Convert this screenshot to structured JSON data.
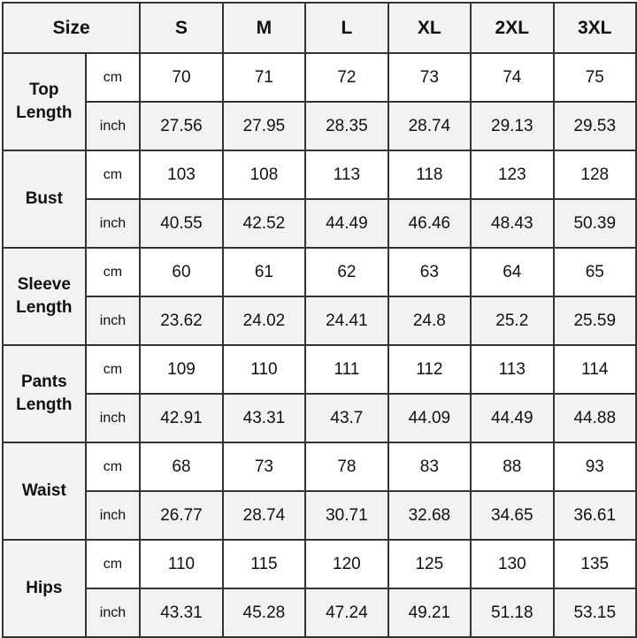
{
  "header": {
    "size_label": "Size",
    "sizes": [
      "S",
      "M",
      "L",
      "XL",
      "2XL",
      "3XL"
    ]
  },
  "rows": [
    {
      "label_line1": "Top",
      "label_line2": "Length",
      "cm_unit": "cm",
      "inch_unit": "inch",
      "cm": [
        "70",
        "71",
        "72",
        "73",
        "74",
        "75"
      ],
      "inch": [
        "27.56",
        "27.95",
        "28.35",
        "28.74",
        "29.13",
        "29.53"
      ]
    },
    {
      "label_line1": "Bust",
      "label_line2": "",
      "cm_unit": "cm",
      "inch_unit": "inch",
      "cm": [
        "103",
        "108",
        "113",
        "118",
        "123",
        "128"
      ],
      "inch": [
        "40.55",
        "42.52",
        "44.49",
        "46.46",
        "48.43",
        "50.39"
      ]
    },
    {
      "label_line1": "Sleeve",
      "label_line2": "Length",
      "cm_unit": "cm",
      "inch_unit": "inch",
      "cm": [
        "60",
        "61",
        "62",
        "63",
        "64",
        "65"
      ],
      "inch": [
        "23.62",
        "24.02",
        "24.41",
        "24.8",
        "25.2",
        "25.59"
      ]
    },
    {
      "label_line1": "Pants",
      "label_line2": "Length",
      "cm_unit": "cm",
      "inch_unit": "inch",
      "cm": [
        "109",
        "110",
        "111",
        "112",
        "113",
        "114"
      ],
      "inch": [
        "42.91",
        "43.31",
        "43.7",
        "44.09",
        "44.49",
        "44.88"
      ]
    },
    {
      "label_line1": "Waist",
      "label_line2": "",
      "cm_unit": "cm",
      "inch_unit": "inch",
      "cm": [
        "68",
        "73",
        "78",
        "83",
        "88",
        "93"
      ],
      "inch": [
        "26.77",
        "28.74",
        "30.71",
        "32.68",
        "34.65",
        "36.61"
      ]
    },
    {
      "label_line1": "Hips",
      "label_line2": "",
      "cm_unit": "cm",
      "inch_unit": "inch",
      "cm": [
        "110",
        "115",
        "120",
        "125",
        "130",
        "135"
      ],
      "inch": [
        "43.31",
        "45.28",
        "47.24",
        "49.21",
        "51.18",
        "53.15"
      ]
    }
  ]
}
